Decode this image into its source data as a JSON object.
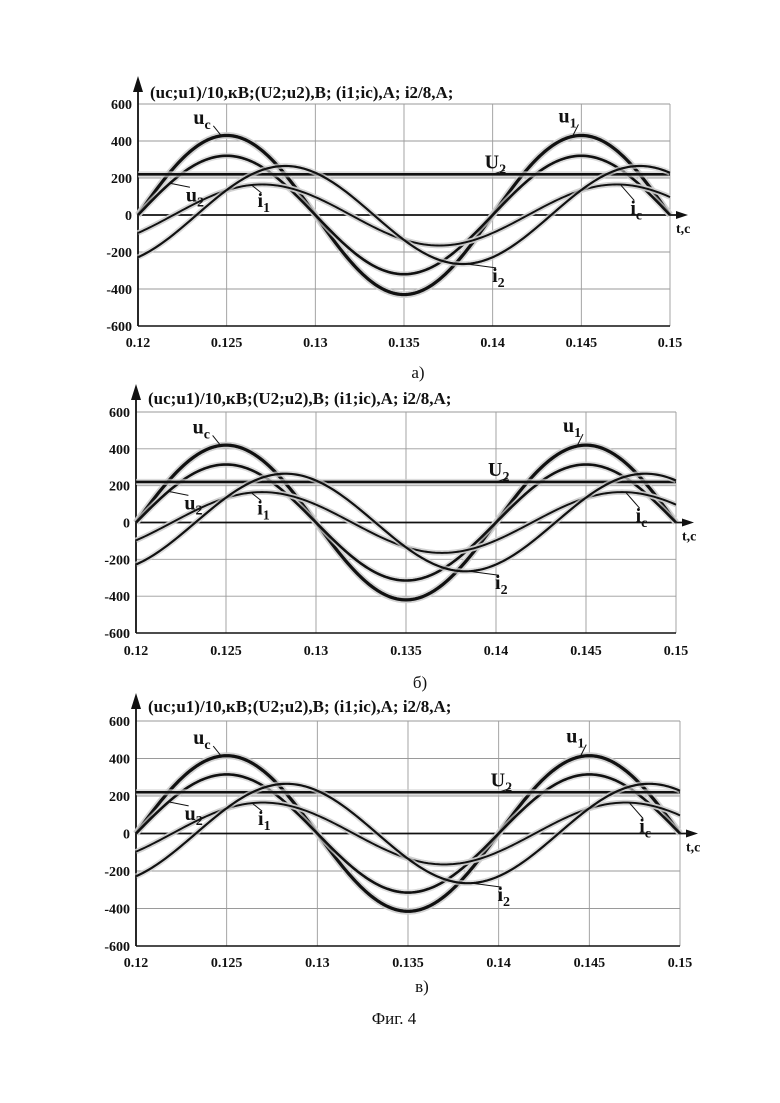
{
  "figure_caption": "Фиг. 4",
  "chart_data": [
    {
      "type": "line",
      "panel_label": "а)",
      "header": "(uc;u1)/10,кВ;(U2;u2),В; (i1;ic),А; i2/8,А;",
      "xlabel": "t,c",
      "xlim": [
        0.12,
        0.15
      ],
      "ylim": [
        -600,
        600
      ],
      "x_ticks": [
        "0.12",
        "0.125",
        "0.13",
        "0.135",
        "0.14",
        "0.145",
        "0.15"
      ],
      "y_ticks": [
        "600",
        "400",
        "200",
        "0",
        "-200",
        "-400",
        "-600"
      ],
      "grid": true,
      "legend": "inline labels",
      "series": [
        {
          "name": "uc",
          "kind": "sine",
          "amplitude": 430,
          "phase_shift_s": 0.0,
          "period_s": 0.02,
          "offset": 0
        },
        {
          "name": "u1",
          "kind": "sine",
          "amplitude": 430,
          "phase_shift_s": 0.0,
          "period_s": 0.02,
          "offset": 0
        },
        {
          "name": "u2",
          "kind": "sine",
          "amplitude": 320,
          "phase_shift_s": 0.0,
          "period_s": 0.02,
          "offset": 0
        },
        {
          "name": "U2",
          "kind": "constant",
          "value": 220
        },
        {
          "name": "i1",
          "kind": "sine",
          "amplitude": 165,
          "phase_shift_s": 0.002,
          "period_s": 0.02,
          "offset": 0
        },
        {
          "name": "ic",
          "kind": "sine",
          "amplitude": 165,
          "phase_shift_s": 0.002,
          "period_s": 0.02,
          "offset": 0
        },
        {
          "name": "i2",
          "kind": "sine",
          "amplitude": 265,
          "phase_shift_s": 0.0033,
          "period_s": 0.02,
          "offset": 0
        }
      ]
    },
    {
      "type": "line",
      "panel_label": "б)",
      "header": "(uc;u1)/10,кВ;(U2;u2),В; (i1;ic),А; i2/8,А;",
      "xlabel": "t,c",
      "xlim": [
        0.12,
        0.15
      ],
      "ylim": [
        -600,
        600
      ],
      "x_ticks": [
        "0.12",
        "0.125",
        "0.13",
        "0.135",
        "0.14",
        "0.145",
        "0.15"
      ],
      "y_ticks": [
        "600",
        "400",
        "200",
        "0",
        "-200",
        "-400",
        "-600"
      ],
      "grid": true,
      "legend": "inline labels",
      "series": [
        {
          "name": "uc",
          "kind": "sine",
          "amplitude": 420,
          "phase_shift_s": 0.0,
          "period_s": 0.02,
          "offset": 0
        },
        {
          "name": "u1",
          "kind": "sine",
          "amplitude": 420,
          "phase_shift_s": 0.0,
          "period_s": 0.02,
          "offset": 0
        },
        {
          "name": "u2",
          "kind": "sine",
          "amplitude": 315,
          "phase_shift_s": 0.0,
          "period_s": 0.02,
          "offset": 0
        },
        {
          "name": "U2",
          "kind": "constant",
          "value": 220
        },
        {
          "name": "i1",
          "kind": "sine",
          "amplitude": 165,
          "phase_shift_s": 0.002,
          "period_s": 0.02,
          "offset": 0
        },
        {
          "name": "ic",
          "kind": "sine",
          "amplitude": 165,
          "phase_shift_s": 0.002,
          "period_s": 0.02,
          "offset": 0
        },
        {
          "name": "i2",
          "kind": "sine",
          "amplitude": 265,
          "phase_shift_s": 0.0033,
          "period_s": 0.02,
          "offset": 0
        }
      ]
    },
    {
      "type": "line",
      "panel_label": "в)",
      "header": "(uc;u1)/10,кВ;(U2;u2),В; (i1;ic),А; i2/8,А;",
      "xlabel": "t,c",
      "xlim": [
        0.12,
        0.15
      ],
      "ylim": [
        -600,
        600
      ],
      "x_ticks": [
        "0.12",
        "0.125",
        "0.13",
        "0.135",
        "0.14",
        "0.145",
        "0.15"
      ],
      "y_ticks": [
        "600",
        "400",
        "200",
        "0",
        "-200",
        "-400",
        "-600"
      ],
      "grid": true,
      "legend": "inline labels",
      "series": [
        {
          "name": "uc",
          "kind": "sine",
          "amplitude": 415,
          "phase_shift_s": 0.0,
          "period_s": 0.02,
          "offset": 0
        },
        {
          "name": "u1",
          "kind": "sine",
          "amplitude": 415,
          "phase_shift_s": 0.0,
          "period_s": 0.02,
          "offset": 0
        },
        {
          "name": "u2",
          "kind": "sine",
          "amplitude": 315,
          "phase_shift_s": 0.0,
          "period_s": 0.02,
          "offset": 0
        },
        {
          "name": "U2",
          "kind": "constant",
          "value": 220
        },
        {
          "name": "i1",
          "kind": "sine",
          "amplitude": 165,
          "phase_shift_s": 0.002,
          "period_s": 0.02,
          "offset": 0
        },
        {
          "name": "ic",
          "kind": "sine",
          "amplitude": 165,
          "phase_shift_s": 0.002,
          "period_s": 0.02,
          "offset": 0
        },
        {
          "name": "i2",
          "kind": "sine",
          "amplitude": 265,
          "phase_shift_s": 0.0033,
          "period_s": 0.02,
          "offset": 0
        }
      ]
    }
  ]
}
